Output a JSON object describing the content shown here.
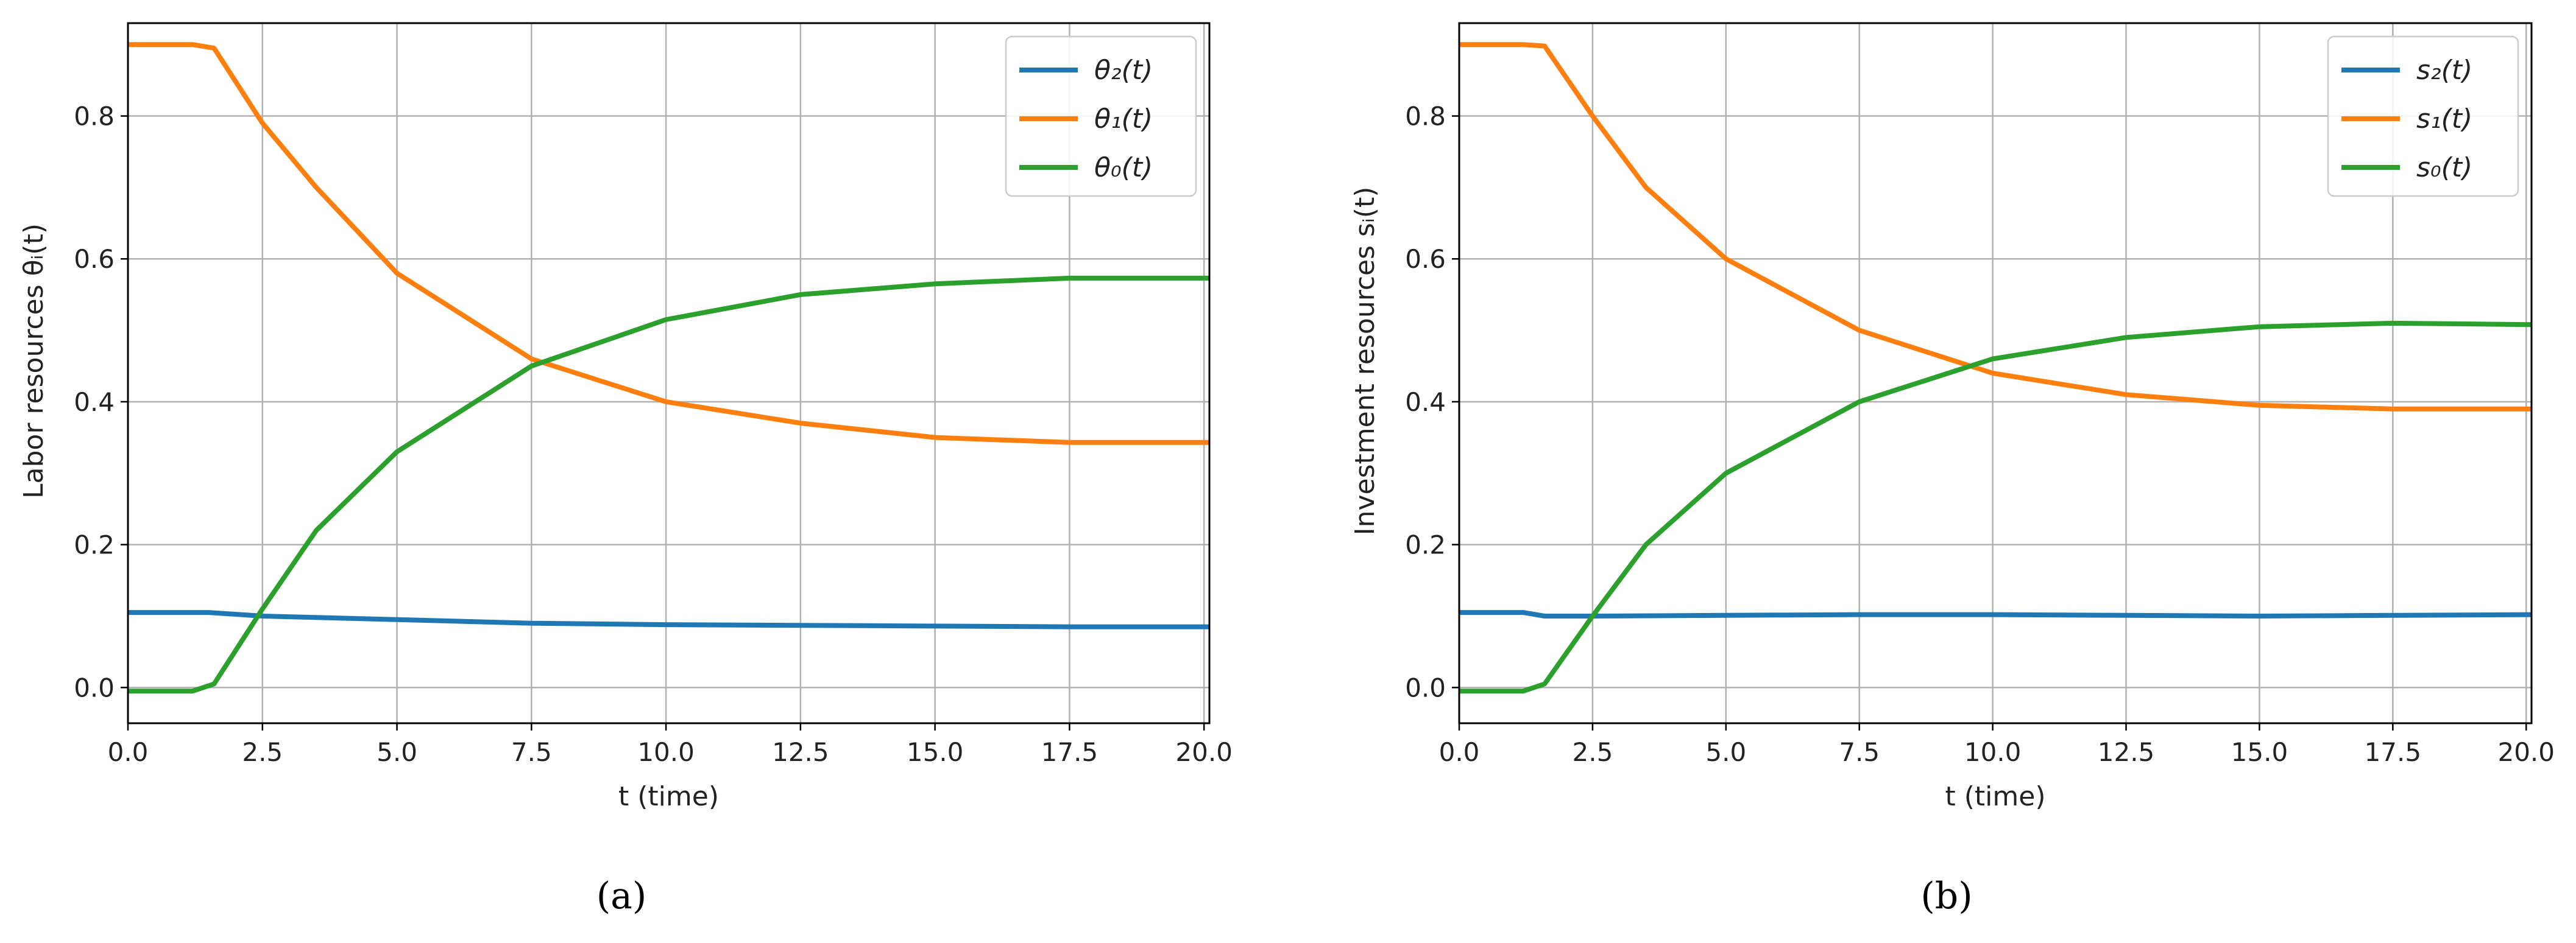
{
  "chart_data": [
    {
      "type": "line",
      "panel_label": "(a)",
      "xlabel": "t (time)",
      "ylabel": "Labor resources θᵢ(t)",
      "xlim": [
        0,
        20.1
      ],
      "ylim": [
        -0.05,
        0.93
      ],
      "xticks": [
        "0.0",
        "2.5",
        "5.0",
        "7.5",
        "10.0",
        "12.5",
        "15.0",
        "17.5",
        "20.0"
      ],
      "yticks": [
        "0.0",
        "0.2",
        "0.4",
        "0.6",
        "0.8"
      ],
      "grid": true,
      "legend_position": "top-right",
      "series": [
        {
          "name": "θ₂(t)",
          "color": "#1f77b4",
          "x": [
            0,
            1.5,
            2.5,
            5,
            7.5,
            10,
            12.5,
            15,
            17.5,
            20.1
          ],
          "y": [
            0.105,
            0.105,
            0.1,
            0.095,
            0.09,
            0.088,
            0.087,
            0.086,
            0.085,
            0.085
          ]
        },
        {
          "name": "θ₁(t)",
          "color": "#ff7f0e",
          "x": [
            0,
            1.2,
            1.6,
            2.5,
            3.5,
            5,
            7.5,
            10,
            12.5,
            15,
            17.5,
            20.1
          ],
          "y": [
            0.9,
            0.9,
            0.895,
            0.79,
            0.7,
            0.58,
            0.46,
            0.4,
            0.37,
            0.35,
            0.343,
            0.343
          ]
        },
        {
          "name": "θ₀(t)",
          "color": "#2ca02c",
          "x": [
            0,
            1.2,
            1.6,
            2.5,
            3.5,
            5,
            7.5,
            10,
            12.5,
            15,
            17.5,
            20.1
          ],
          "y": [
            -0.005,
            -0.005,
            0.005,
            0.11,
            0.22,
            0.33,
            0.45,
            0.515,
            0.55,
            0.565,
            0.573,
            0.573
          ]
        }
      ]
    },
    {
      "type": "line",
      "panel_label": "(b)",
      "xlabel": "t (time)",
      "ylabel": "Investment resources sᵢ(t)",
      "xlim": [
        0,
        20.1
      ],
      "ylim": [
        -0.05,
        0.93
      ],
      "xticks": [
        "0.0",
        "2.5",
        "5.0",
        "7.5",
        "10.0",
        "12.5",
        "15.0",
        "17.5",
        "20.0"
      ],
      "yticks": [
        "0.0",
        "0.2",
        "0.4",
        "0.6",
        "0.8"
      ],
      "grid": true,
      "legend_position": "top-right",
      "series": [
        {
          "name": "s₂(t)",
          "color": "#1f77b4",
          "x": [
            0,
            1.2,
            1.6,
            2.5,
            5,
            7.5,
            10,
            12.5,
            15,
            17.5,
            20.1
          ],
          "y": [
            0.105,
            0.105,
            0.1,
            0.1,
            0.101,
            0.102,
            0.102,
            0.101,
            0.1,
            0.101,
            0.102
          ]
        },
        {
          "name": "s₁(t)",
          "color": "#ff7f0e",
          "x": [
            0,
            1.2,
            1.6,
            2.5,
            3.5,
            5,
            7.5,
            10,
            12.5,
            15,
            17.5,
            20.1
          ],
          "y": [
            0.9,
            0.9,
            0.898,
            0.8,
            0.7,
            0.6,
            0.5,
            0.44,
            0.41,
            0.395,
            0.39,
            0.39
          ]
        },
        {
          "name": "s₀(t)",
          "color": "#2ca02c",
          "x": [
            0,
            1.2,
            1.6,
            2.5,
            3.5,
            5,
            7.5,
            10,
            12.5,
            15,
            17.5,
            20.1
          ],
          "y": [
            -0.005,
            -0.005,
            0.005,
            0.1,
            0.2,
            0.3,
            0.4,
            0.46,
            0.49,
            0.505,
            0.51,
            0.508
          ]
        }
      ]
    }
  ]
}
